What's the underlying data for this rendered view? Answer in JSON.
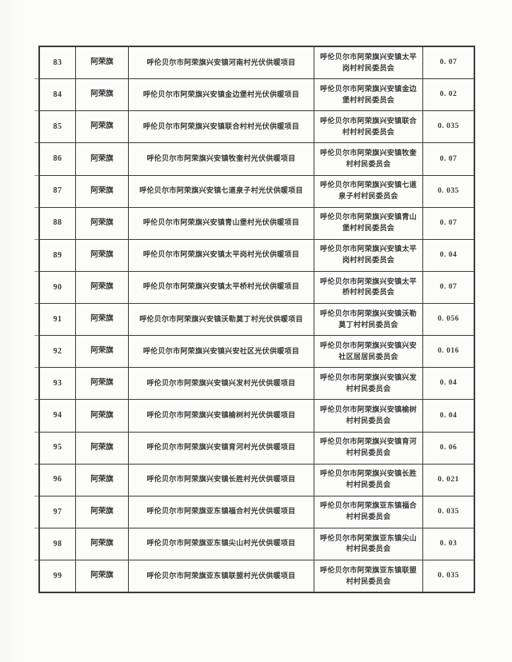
{
  "colors": {
    "page_background": "#fbfbfa",
    "table_border": "#3c3c3c",
    "text": "#3a3a3a"
  },
  "table": {
    "columns": [
      "no",
      "county",
      "project",
      "committee",
      "subsidy"
    ],
    "rows": [
      {
        "no": "83",
        "county": "阿荣旗",
        "project": "呼伦贝尔市阿荣旗兴安镇河南村光伏供暖项目",
        "committee": "呼伦贝尔市阿荣旗兴安镇太平岗村村民委员会",
        "subsidy": "0. 07"
      },
      {
        "no": "84",
        "county": "阿荣旗",
        "project": "呼伦贝尔市阿荣旗兴安镇金边堡村光伏供暖项目",
        "committee": "呼伦贝尔市阿荣旗兴安镇金边堡村村民委员会",
        "subsidy": "0. 02"
      },
      {
        "no": "85",
        "county": "阿荣旗",
        "project": "呼伦贝尔市阿荣旗兴安镇联合村村光伏供暖项目",
        "committee": "呼伦贝尔市阿荣旗兴安镇联合村村村民委员会",
        "subsidy": "0. 035"
      },
      {
        "no": "86",
        "county": "阿荣旗",
        "project": "呼伦贝尔市阿荣旗兴安镇牧奎村光伏供暖项目",
        "committee": "呼伦贝尔市阿荣旗兴安镇牧奎村村民委员会",
        "subsidy": "0. 07"
      },
      {
        "no": "87",
        "county": "阿荣旗",
        "project": "呼伦贝尔市阿荣旗兴安镇七道泉子村光伏供暖项目",
        "committee": "呼伦贝尔市阿荣旗兴安镇七道泉子村村民委员会",
        "subsidy": "0. 035"
      },
      {
        "no": "88",
        "county": "阿荣旗",
        "project": "呼伦贝尔市阿荣旗兴安镇青山堡村光伏供暖项目",
        "committee": "呼伦贝尔市阿荣旗兴安镇青山堡村村民委员会",
        "subsidy": "0. 07"
      },
      {
        "no": "89",
        "county": "阿荣旗",
        "project": "呼伦贝尔市阿荣旗兴安镇太平岗村光伏供暖项目",
        "committee": "呼伦贝尔市阿荣旗兴安镇太平岗村村民委员会",
        "subsidy": "0. 04"
      },
      {
        "no": "90",
        "county": "阿荣旗",
        "project": "呼伦贝尔市阿荣旗兴安镇太平桥村光伏供暖项目",
        "committee": "呼伦贝尔市阿荣旗兴安镇太平桥村村民委员会",
        "subsidy": "0. 07"
      },
      {
        "no": "91",
        "county": "阿荣旗",
        "project": "呼伦贝尔市阿荣旗兴安镇沃勒莫丁村光伏供暖项目",
        "committee": "呼伦贝尔市阿荣旗兴安镇沃勒莫丁村村民委员会",
        "subsidy": "0. 056"
      },
      {
        "no": "92",
        "county": "阿荣旗",
        "project": "呼伦贝尔市阿荣旗兴安镇兴安社区光伏供暖项目",
        "committee": "呼伦贝尔市阿荣旗兴安镇兴安社区居居民委员会",
        "subsidy": "0. 016"
      },
      {
        "no": "93",
        "county": "阿荣旗",
        "project": "呼伦贝尔市阿荣旗兴安镇兴发村光伏供暖项目",
        "committee": "呼伦贝尔市阿荣旗兴安镇兴发村村民委员会",
        "subsidy": "0. 04"
      },
      {
        "no": "94",
        "county": "阿荣旗",
        "project": "呼伦贝尔市阿荣旗兴安镇榆树村光伏供暖项目",
        "committee": "呼伦贝尔市阿荣旗兴安镇榆树村村民委员会",
        "subsidy": "0. 04"
      },
      {
        "no": "95",
        "county": "阿荣旗",
        "project": "呼伦贝尔市阿荣旗兴安镇育河村光伏供暖项目",
        "committee": "呼伦贝尔市阿荣旗兴安镇育河村村民委员会",
        "subsidy": "0. 06"
      },
      {
        "no": "96",
        "county": "阿荣旗",
        "project": "呼伦贝尔市阿荣旗兴安镇长胜村光伏供暖项目",
        "committee": "呼伦贝尔市阿荣旗兴安镇长胜村村民委员会",
        "subsidy": "0. 021"
      },
      {
        "no": "97",
        "county": "阿荣旗",
        "project": "呼伦贝尔市阿荣旗亚东镇福合村光伏供暖项目",
        "committee": "呼伦贝尔市阿荣旗亚东镇福合村村民委员会",
        "subsidy": "0. 035"
      },
      {
        "no": "98",
        "county": "阿荣旗",
        "project": "呼伦贝尔市阿荣旗亚东镇尖山村光伏供暖项目",
        "committee": "呼伦贝尔市阿荣旗亚东镇尖山村村民委员会",
        "subsidy": "0. 03"
      },
      {
        "no": "99",
        "county": "阿荣旗",
        "project": "呼伦贝尔市阿荣旗亚东镇联盟村光伏供暖项目",
        "committee": "呼伦贝尔市阿荣旗亚东镇联盟村村民委员会",
        "subsidy": "0. 035"
      }
    ]
  }
}
